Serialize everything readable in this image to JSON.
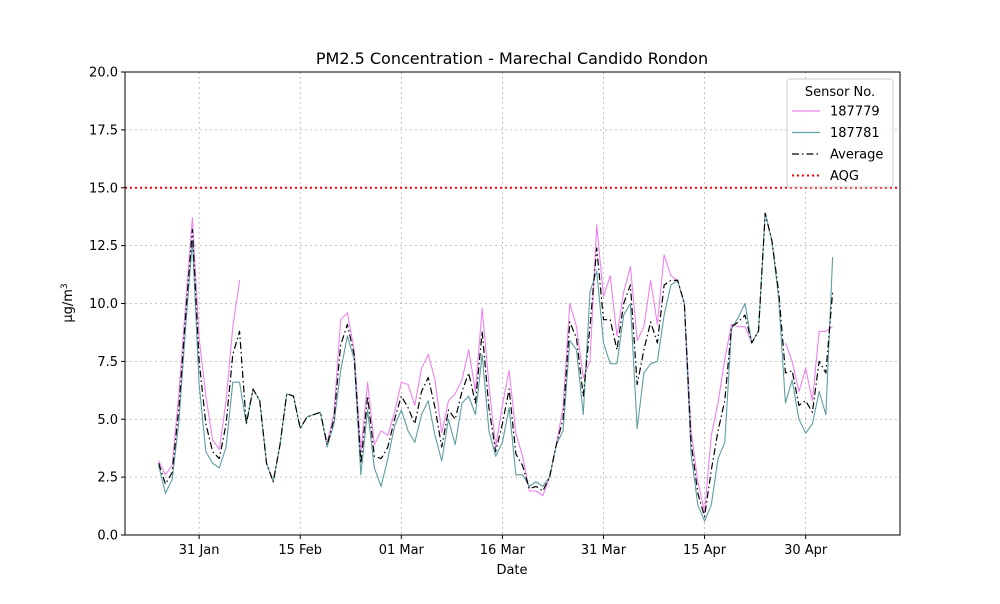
{
  "chart_data": {
    "type": "line",
    "title": "PM2.5 Concentration - Marechal Candido Rondon",
    "xlabel": "Date",
    "ylabel_main": "µg/m",
    "ylabel_sup": "3",
    "ylim": [
      0,
      20
    ],
    "yticks": [
      "0.0",
      "2.5",
      "5.0",
      "7.5",
      "10.0",
      "12.5",
      "15.0",
      "17.5",
      "20.0"
    ],
    "xlim": [
      "2024-01-20",
      "2024-05-14"
    ],
    "xticks": [
      {
        "date": "2024-01-31",
        "label": "31 Jan"
      },
      {
        "date": "2024-02-15",
        "label": "15 Feb"
      },
      {
        "date": "2024-03-01",
        "label": "01 Mar"
      },
      {
        "date": "2024-03-16",
        "label": "16 Mar"
      },
      {
        "date": "2024-03-31",
        "label": "31 Mar"
      },
      {
        "date": "2024-04-15",
        "label": "15 Apr"
      },
      {
        "date": "2024-04-30",
        "label": "30 Apr"
      }
    ],
    "grid": true,
    "legend": {
      "title": "Sensor No.",
      "position": "top-right"
    },
    "start_date": "2024-01-25",
    "reference_line": {
      "name": "AQG",
      "value": 15.0,
      "color": "#ff0000"
    },
    "series": [
      {
        "name": "187779",
        "color": "#ee82ee",
        "style": "solid",
        "values": [
          3.5,
          2.6,
          2.9,
          6.0,
          10.5,
          14.0,
          8.5,
          5.5,
          4.0,
          3.7,
          5.0,
          10.2,
          11.0,
          null,
          null,
          null,
          null,
          null,
          null,
          null,
          null,
          null,
          null,
          null,
          null,
          null,
          null,
          null,
          null,
          null,
          null,
          null,
          null,
          null,
          null,
          null,
          null,
          null,
          null,
          null,
          null,
          null,
          null,
          null,
          null,
          null,
          null,
          null,
          null,
          null,
          null,
          null,
          null,
          null,
          null,
          null,
          null,
          null,
          null,
          null,
          null,
          null,
          null,
          null,
          null,
          null,
          null,
          null,
          null,
          null,
          null,
          null,
          null,
          null,
          null,
          null,
          null,
          null,
          null,
          null,
          null,
          null,
          null,
          null,
          null,
          null,
          null,
          null,
          null,
          null,
          null,
          null,
          null,
          null,
          null,
          null,
          null,
          null,
          null,
          null,
          null,
          null,
          null,
          null,
          null,
          null,
          null,
          null,
          null,
          null,
          null,
          null,
          null,
          null,
          null,
          null,
          null,
          null
        ]
      },
      {
        "name": "187781",
        "color": "#5f9ea0",
        "style": "solid",
        "values": []
      },
      {
        "name": "Average",
        "color": "#000000",
        "style": "dashdot",
        "values": []
      }
    ]
  }
}
